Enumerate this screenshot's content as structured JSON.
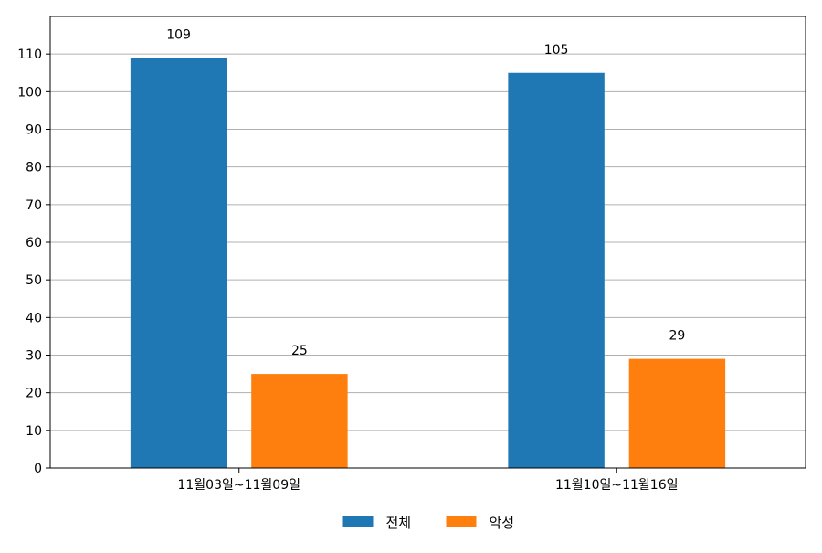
{
  "chart_data": {
    "type": "bar",
    "categories": [
      "11월03일~11월09일",
      "11월10일~11월16일"
    ],
    "series": [
      {
        "name": "전체",
        "values": [
          109,
          105
        ],
        "color": "#1f77b4"
      },
      {
        "name": "악성",
        "values": [
          25,
          29
        ],
        "color": "#ff7f0e"
      }
    ],
    "ylim": [
      0,
      120
    ],
    "yticks": [
      0,
      10,
      20,
      30,
      40,
      50,
      60,
      70,
      80,
      90,
      100,
      110
    ],
    "grid": true,
    "legend_position": "bottom-center",
    "data_labels": true
  }
}
